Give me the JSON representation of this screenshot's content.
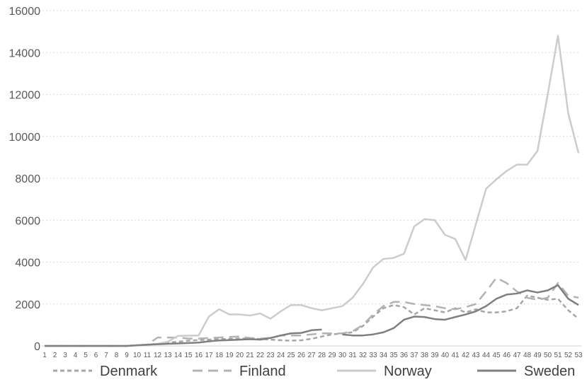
{
  "chart_data": {
    "type": "line",
    "ylim": [
      0,
      16000
    ],
    "yticks": [
      0,
      2000,
      4000,
      6000,
      8000,
      10000,
      12000,
      14000,
      16000
    ],
    "x": [
      "1",
      "2",
      "3",
      "4",
      "5",
      "6",
      "7",
      "8",
      "9",
      "10",
      "11",
      "12",
      "13",
      "14",
      "15",
      "16",
      "17",
      "18",
      "19",
      "20",
      "21",
      "22",
      "23",
      "24",
      "25",
      "26",
      "27",
      "28",
      "29",
      "30",
      "31",
      "32",
      "33",
      "34",
      "35",
      "36",
      "37",
      "38",
      "39",
      "40",
      "41",
      "42",
      "43",
      "44",
      "45",
      "46",
      "47",
      "48",
      "49",
      "50",
      "51",
      "52",
      "53"
    ],
    "grid": "horizontal",
    "legend": "bottom",
    "series": [
      {
        "name": "Denmark",
        "color": "#a6a6a6",
        "dash": "short-dash",
        "values": [
          0,
          0,
          0,
          0,
          0,
          0,
          0,
          0,
          0,
          30,
          60,
          100,
          160,
          200,
          250,
          280,
          300,
          320,
          340,
          350,
          350,
          330,
          300,
          270,
          250,
          270,
          340,
          450,
          550,
          600,
          650,
          950,
          1400,
          1800,
          1950,
          1850,
          1500,
          1800,
          1700,
          1600,
          1800,
          1600,
          1750,
          1600,
          1600,
          1650,
          1800,
          2400,
          2300,
          2200,
          2250,
          1700,
          1300
        ]
      },
      {
        "name": "Finland",
        "color": "#b3b3b3",
        "dash": "long-dash",
        "values": [
          0,
          0,
          0,
          0,
          0,
          0,
          0,
          0,
          0,
          30,
          60,
          400,
          400,
          400,
          350,
          350,
          380,
          400,
          430,
          450,
          380,
          350,
          380,
          500,
          500,
          500,
          550,
          600,
          600,
          600,
          700,
          1000,
          1500,
          1900,
          2100,
          2100,
          2000,
          1950,
          1900,
          1800,
          1750,
          1850,
          2000,
          2600,
          3250,
          3000,
          2600,
          2300,
          2200,
          2300,
          3000,
          2400,
          2300
        ]
      },
      {
        "name": "Norway",
        "color": "#cccccc",
        "dash": "solid",
        "values": [
          0,
          0,
          0,
          0,
          0,
          0,
          0,
          0,
          0,
          30,
          60,
          100,
          200,
          480,
          490,
          500,
          1400,
          1750,
          1500,
          1500,
          1450,
          1550,
          1300,
          1650,
          1950,
          1950,
          1800,
          1700,
          1800,
          1900,
          2300,
          2950,
          3750,
          4150,
          4200,
          4400,
          5700,
          6050,
          6000,
          5300,
          5100,
          4100,
          5800,
          7500,
          7950,
          8350,
          8650,
          8650,
          9300,
          12000,
          14800,
          11100,
          9200
        ]
      },
      {
        "name": "Sweden",
        "color": "#7f7f7f",
        "dash": "solid",
        "values": [
          0,
          0,
          0,
          0,
          0,
          0,
          0,
          0,
          0,
          30,
          60,
          80,
          100,
          120,
          140,
          160,
          220,
          260,
          280,
          300,
          320,
          300,
          380,
          500,
          600,
          620,
          750,
          780,
          null,
          550,
          500,
          500,
          550,
          650,
          850,
          1250,
          1400,
          1380,
          1280,
          1250,
          1380,
          1500,
          1650,
          1900,
          2250,
          2450,
          2500,
          2650,
          2550,
          2650,
          2900,
          2250,
          1950
        ]
      }
    ]
  }
}
